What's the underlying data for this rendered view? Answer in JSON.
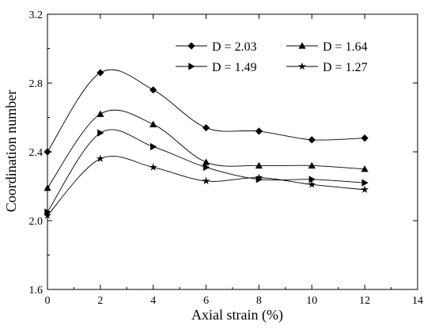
{
  "chart_data": {
    "type": "line",
    "title": "",
    "xlabel": "Axial strain (%)",
    "ylabel": "Coordination number",
    "xlim": [
      0,
      14
    ],
    "ylim": [
      1.6,
      3.2
    ],
    "xticks": [
      0,
      2,
      4,
      6,
      8,
      10,
      12,
      14
    ],
    "yticks": [
      1.6,
      2.0,
      2.4,
      2.8,
      3.2
    ],
    "grid": false,
    "legend_position": "top-right",
    "x": [
      0,
      2,
      4,
      6,
      8,
      10,
      12
    ],
    "series": [
      {
        "name": "D = 2.03",
        "marker": "diamond",
        "values": [
          2.4,
          2.86,
          2.76,
          2.54,
          2.52,
          2.47,
          2.48
        ]
      },
      {
        "name": "D = 1.64",
        "marker": "triangle-up",
        "values": [
          2.19,
          2.62,
          2.56,
          2.34,
          2.32,
          2.32,
          2.3
        ]
      },
      {
        "name": "D = 1.49",
        "marker": "triangle-right",
        "values": [
          2.05,
          2.51,
          2.43,
          2.31,
          2.24,
          2.24,
          2.22
        ]
      },
      {
        "name": "D = 1.27",
        "marker": "star",
        "values": [
          2.03,
          2.36,
          2.31,
          2.23,
          2.25,
          2.21,
          2.18
        ]
      }
    ]
  }
}
